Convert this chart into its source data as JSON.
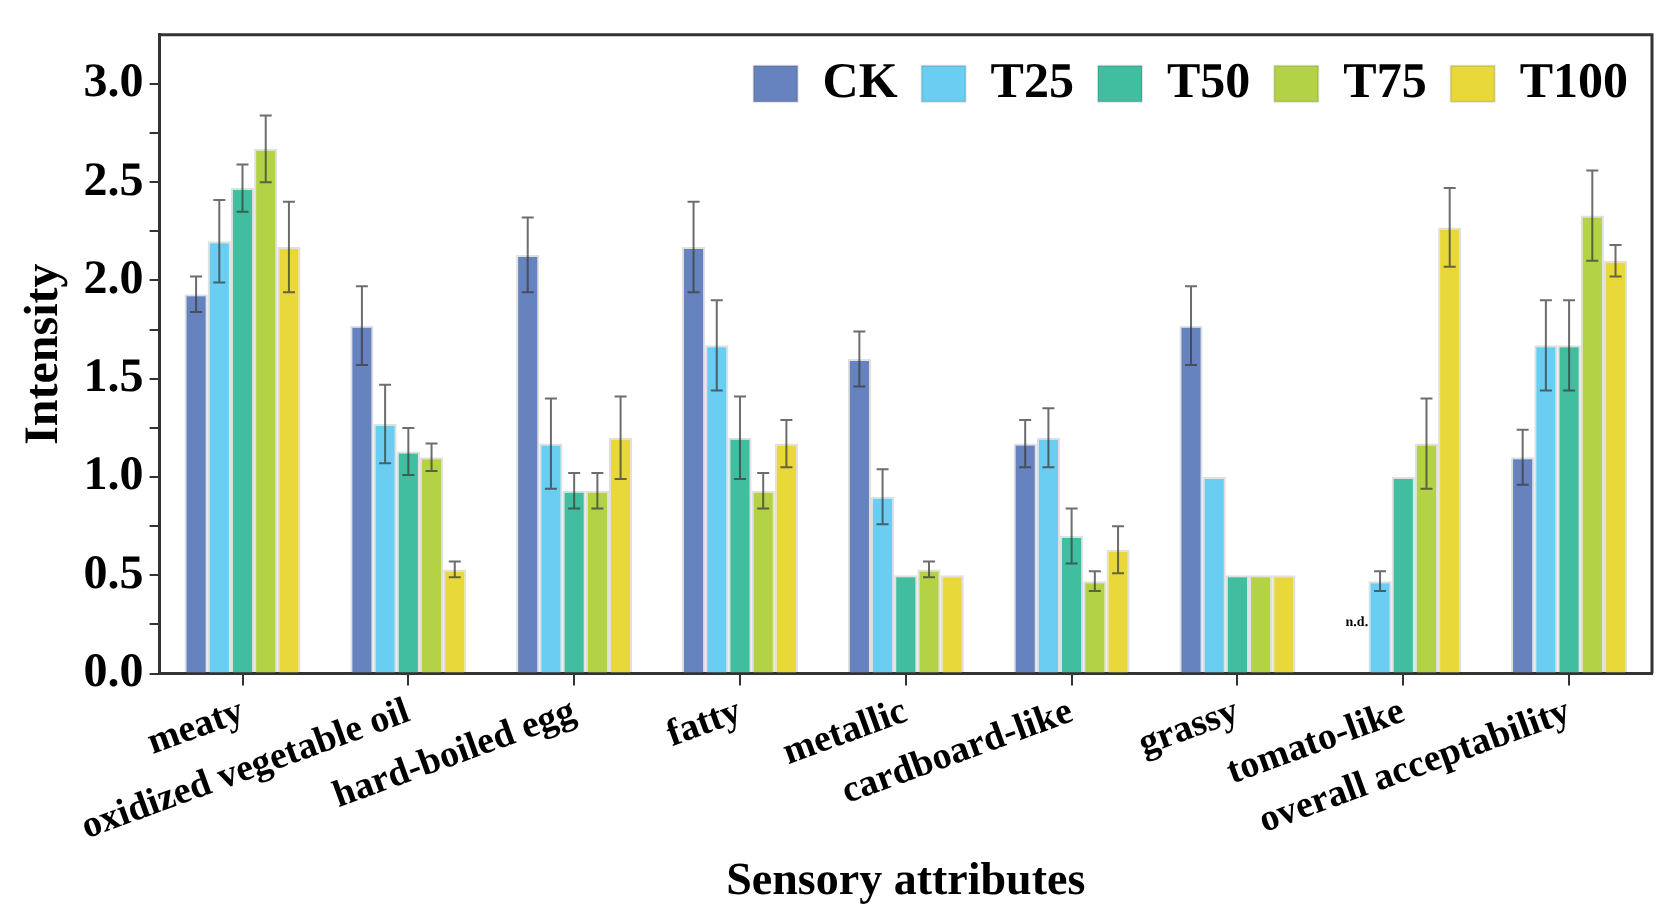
{
  "chart_data": {
    "type": "bar",
    "xlabel": "Sensory attributes",
    "ylabel": "Intensity",
    "categories": [
      "meaty",
      "oxidized vegetable oil",
      "hard-boiled egg",
      "fatty",
      "metallic",
      "cardboard-like",
      "grassy",
      "tomato-like",
      "overall acceptability"
    ],
    "series": [
      {
        "name": "CK",
        "color": "#6783bf",
        "values": [
          1.93,
          1.77,
          2.13,
          2.17,
          1.6,
          1.17,
          1.77,
          null,
          1.1
        ],
        "errors": [
          0.09,
          0.2,
          0.19,
          0.23,
          0.14,
          0.12,
          0.2,
          null,
          0.14
        ]
      },
      {
        "name": "T25",
        "color": "#69cef2",
        "values": [
          2.2,
          1.27,
          1.17,
          1.67,
          0.9,
          1.2,
          1.0,
          0.47,
          1.67
        ],
        "errors": [
          0.21,
          0.2,
          0.23,
          0.23,
          0.14,
          0.15,
          null,
          0.05,
          0.23
        ]
      },
      {
        "name": "T50",
        "color": "#41bea0",
        "values": [
          2.47,
          1.13,
          0.93,
          1.2,
          0.5,
          0.7,
          0.5,
          1.0,
          1.67
        ],
        "errors": [
          0.12,
          0.12,
          0.09,
          0.21,
          null,
          0.14,
          null,
          null,
          0.23
        ]
      },
      {
        "name": "T75",
        "color": "#b3d245",
        "values": [
          2.67,
          1.1,
          0.93,
          0.93,
          0.53,
          0.47,
          0.5,
          1.17,
          2.33
        ],
        "errors": [
          0.17,
          0.07,
          0.09,
          0.09,
          0.04,
          0.05,
          null,
          0.23,
          0.23
        ]
      },
      {
        "name": "T100",
        "color": "#e8d83a",
        "values": [
          2.17,
          0.53,
          1.2,
          1.17,
          0.5,
          0.63,
          0.5,
          2.27,
          2.1
        ],
        "errors": [
          0.23,
          0.04,
          0.21,
          0.12,
          null,
          0.12,
          null,
          0.2,
          0.08
        ]
      }
    ],
    "annotations": [
      "n.d."
    ],
    "ylim": [
      0,
      3.25
    ],
    "yticks": [
      {
        "value": 0,
        "label": "0.0"
      },
      {
        "value": 0.25,
        "label": null
      },
      {
        "value": 0.5,
        "label": "0.5"
      },
      {
        "value": 0.75,
        "label": null
      },
      {
        "value": 1,
        "label": "1.0"
      },
      {
        "value": 1.25,
        "label": null
      },
      {
        "value": 1.5,
        "label": "1.5"
      },
      {
        "value": 1.75,
        "label": null
      },
      {
        "value": 2,
        "label": "2.0"
      },
      {
        "value": 2.25,
        "label": null
      },
      {
        "value": 2.5,
        "label": "2.5"
      },
      {
        "value": 2.75,
        "label": null
      },
      {
        "value": 3,
        "label": "3.0"
      }
    ],
    "grid": false,
    "legend": "top right"
  }
}
